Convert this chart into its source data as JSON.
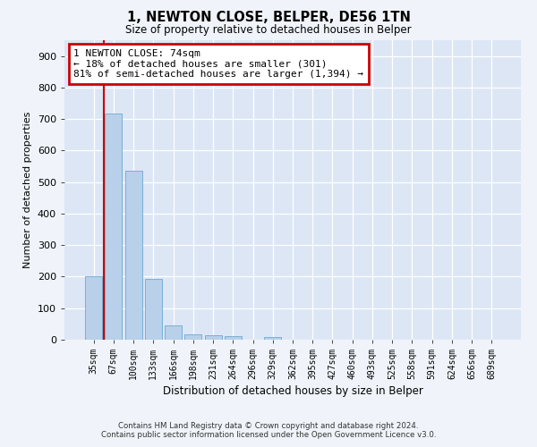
{
  "title_line1": "1, NEWTON CLOSE, BELPER, DE56 1TN",
  "title_line2": "Size of property relative to detached houses in Belper",
  "xlabel": "Distribution of detached houses by size in Belper",
  "ylabel": "Number of detached properties",
  "categories": [
    "35sqm",
    "67sqm",
    "100sqm",
    "133sqm",
    "166sqm",
    "198sqm",
    "231sqm",
    "264sqm",
    "296sqm",
    "329sqm",
    "362sqm",
    "395sqm",
    "427sqm",
    "460sqm",
    "493sqm",
    "525sqm",
    "558sqm",
    "591sqm",
    "624sqm",
    "656sqm",
    "689sqm"
  ],
  "values": [
    200,
    718,
    535,
    192,
    44,
    18,
    13,
    10,
    0,
    8,
    0,
    0,
    0,
    0,
    0,
    0,
    0,
    0,
    0,
    0,
    0
  ],
  "bar_color": "#b8d0ea",
  "bar_edge_color": "#6aaad4",
  "property_line_x": 0.5,
  "annotation_text": "1 NEWTON CLOSE: 74sqm\n← 18% of detached houses are smaller (301)\n81% of semi-detached houses are larger (1,394) →",
  "annotation_box_color": "#ffffff",
  "annotation_box_edge": "#cc0000",
  "red_line_color": "#cc0000",
  "ylim": [
    0,
    950
  ],
  "yticks": [
    0,
    100,
    200,
    300,
    400,
    500,
    600,
    700,
    800,
    900
  ],
  "footer_line1": "Contains HM Land Registry data © Crown copyright and database right 2024.",
  "footer_line2": "Contains public sector information licensed under the Open Government Licence v3.0.",
  "background_color": "#f0f4fa",
  "plot_bg_color": "#dce6f5"
}
